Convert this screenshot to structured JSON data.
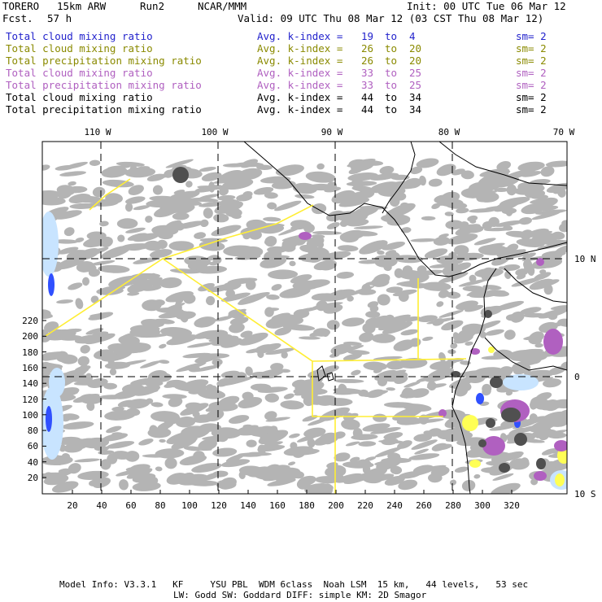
{
  "header": {
    "model": "TORERO",
    "resolution": "15km ARW",
    "run": "Run2",
    "org": "NCAR/MMM",
    "fcst_label": "Fcst.",
    "fcst_value": "57 h",
    "init": "Init: 00 UTC Tue 06 Mar 12",
    "valid": "Valid: 09 UTC Thu 08 Mar 12 (03 CST Thu 08 Mar 12)"
  },
  "legend": [
    {
      "field": "Total cloud mixing ratio",
      "kindex_label": "Avg. k-index =",
      "k_from": "19",
      "to": "to",
      "k_to": "4",
      "sm": "sm= 2",
      "color": "#2222cc"
    },
    {
      "field": "Total cloud mixing ratio",
      "kindex_label": "Avg. k-index =",
      "k_from": "26",
      "to": "to",
      "k_to": "20",
      "sm": "sm= 2",
      "color": "#8a8a00"
    },
    {
      "field": "Total precipitation mixing ratio",
      "kindex_label": "Avg. k-index =",
      "k_from": "26",
      "to": "to",
      "k_to": "20",
      "sm": "sm= 2",
      "color": "#8a8a00"
    },
    {
      "field": "Total cloud mixing ratio",
      "kindex_label": "Avg. k-index =",
      "k_from": "33",
      "to": "to",
      "k_to": "25",
      "sm": "sm= 2",
      "color": "#b060c0"
    },
    {
      "field": "Total precipitation mixing ratio",
      "kindex_label": "Avg. k-index =",
      "k_from": "33",
      "to": "to",
      "k_to": "25",
      "sm": "sm= 2",
      "color": "#b060c0"
    },
    {
      "field": "Total cloud mixing ratio",
      "kindex_label": "Avg. k-index =",
      "k_from": "44",
      "to": "to",
      "k_to": "34",
      "sm": "sm= 2",
      "color": "#000000"
    },
    {
      "field": "Total precipitation mixing ratio",
      "kindex_label": "Avg. k-index =",
      "k_from": "44",
      "to": "to",
      "k_to": "34",
      "sm": "sm= 2",
      "color": "#000000"
    }
  ],
  "map": {
    "lon_labels": [
      "110 W",
      "100 W",
      "90 W",
      "80 W",
      "70 W"
    ],
    "lat_labels": [
      "10 N",
      "0",
      "10 S"
    ],
    "y_ticks": [
      "20",
      "40",
      "60",
      "80",
      "100",
      "120",
      "140",
      "160",
      "180",
      "200",
      "220"
    ],
    "x_ticks": [
      "20",
      "40",
      "60",
      "80",
      "100",
      "120",
      "140",
      "160",
      "180",
      "200",
      "220",
      "240",
      "260",
      "280",
      "300",
      "320"
    ],
    "colors": {
      "cloud_gray": "#b4b4b4",
      "cloud_dark": "#505050",
      "light_blue": "#c8e4ff",
      "blue": "#3050ff",
      "yellow": "#ffff55",
      "purple": "#b060c0",
      "coast": "#000000",
      "box_line": "#ffee33",
      "grid": "#000000"
    }
  },
  "footer": {
    "line1": "Model Info: V3.3.1   KF     YSU PBL  WDM 6class  Noah LSM  15 km,   44 levels,   53 sec",
    "line2": "LW: Godd SW: Goddard DIFF: simple KM: 2D Smagor"
  }
}
